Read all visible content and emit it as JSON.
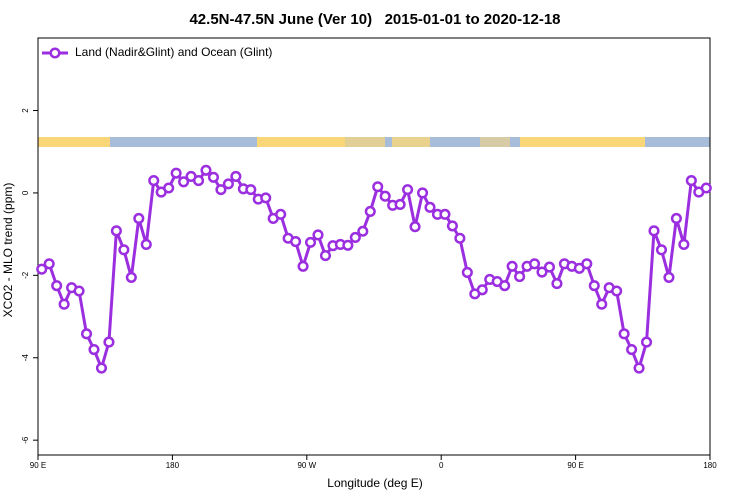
{
  "chart_data": {
    "type": "line",
    "title": "42.5N-47.5N June (Ver 10)   2015-01-01 to 2020-12-18",
    "xlabel": "Longitude (deg E)",
    "ylabel": "XCO2 - MLO trend (ppm)",
    "xlim": [
      90,
      540
    ],
    "ylim": [
      -6.36,
      3.76
    ],
    "xticks": [
      {
        "value": 90,
        "label": "90 E"
      },
      180,
      {
        "value": 270,
        "label": "90 W"
      },
      {
        "value": 360,
        "label": "0"
      },
      {
        "value": 450,
        "label": "90 E"
      },
      {
        "value": 540,
        "label": "180"
      }
    ],
    "yticks": [
      2,
      0,
      -2,
      -4,
      -6
    ],
    "legend": "top-left",
    "x": [
      92.5,
      97.5,
      102.5,
      107.5,
      112.5,
      117.5,
      122.5,
      127.5,
      132.5,
      137.5,
      142.5,
      147.5,
      152.5,
      157.5,
      162.5,
      167.5,
      172.5,
      177.5,
      182.5,
      187.5,
      192.5,
      197.5,
      202.5,
      207.5,
      212.5,
      217.5,
      222.5,
      227.5,
      232.5,
      237.5,
      242.5,
      247.5,
      252.5,
      257.5,
      262.5,
      267.5,
      272.5,
      277.5,
      282.5,
      287.5,
      292.5,
      297.5,
      302.5,
      307.5,
      312.5,
      317.5,
      322.5,
      327.5,
      332.5,
      337.5,
      342.5,
      347.5,
      352.5,
      357.5,
      362.5,
      367.5,
      372.5,
      377.5,
      382.5,
      387.5,
      392.5,
      397.5,
      402.5,
      407.5,
      412.5,
      417.5,
      422.5,
      427.5,
      432.5,
      437.5,
      442.5,
      447.5,
      452.5,
      457.5,
      462.5,
      467.5,
      472.5,
      477.5,
      482.5,
      487.5,
      492.5,
      497.5,
      502.5,
      507.5,
      512.5,
      517.5,
      522.5,
      527.5,
      532.5,
      537.5
    ],
    "series": [
      {
        "name": "Land (Nadir&Glint) and Ocean (Glint)",
        "color": "#9b2fe0",
        "values": [
          -1.85,
          -1.72,
          -2.25,
          -2.7,
          -2.3,
          -2.38,
          -3.42,
          -3.8,
          -4.25,
          -3.62,
          -0.92,
          -1.38,
          -2.05,
          -0.62,
          -1.25,
          0.3,
          0.02,
          0.12,
          0.48,
          0.27,
          0.4,
          0.3,
          0.55,
          0.38,
          0.08,
          0.22,
          0.4,
          0.1,
          0.08,
          -0.15,
          -0.12,
          -0.62,
          -0.52,
          -1.1,
          -1.18,
          -1.78,
          -1.2,
          -1.02,
          -1.52,
          -1.28,
          -1.25,
          -1.27,
          -1.08,
          -0.93,
          -0.45,
          0.15,
          -0.08,
          -0.3,
          -0.28,
          0.08,
          -0.82,
          0.0,
          -0.35,
          -0.52,
          -0.52,
          -0.8,
          -1.1,
          -1.93,
          -2.45,
          -2.35,
          -2.1,
          -2.15,
          -2.25,
          -1.78,
          -2.03,
          -1.78,
          -1.72,
          -1.92,
          -1.8,
          -2.2,
          -1.72,
          -1.78,
          -1.83,
          -1.72,
          -2.25,
          -2.7,
          -2.3,
          -2.38,
          -3.42,
          -3.8,
          -4.25,
          -3.62,
          -0.92,
          -1.38,
          -2.05,
          -0.62,
          -1.25,
          0.3,
          0.02,
          0.12
        ]
      }
    ]
  }
}
